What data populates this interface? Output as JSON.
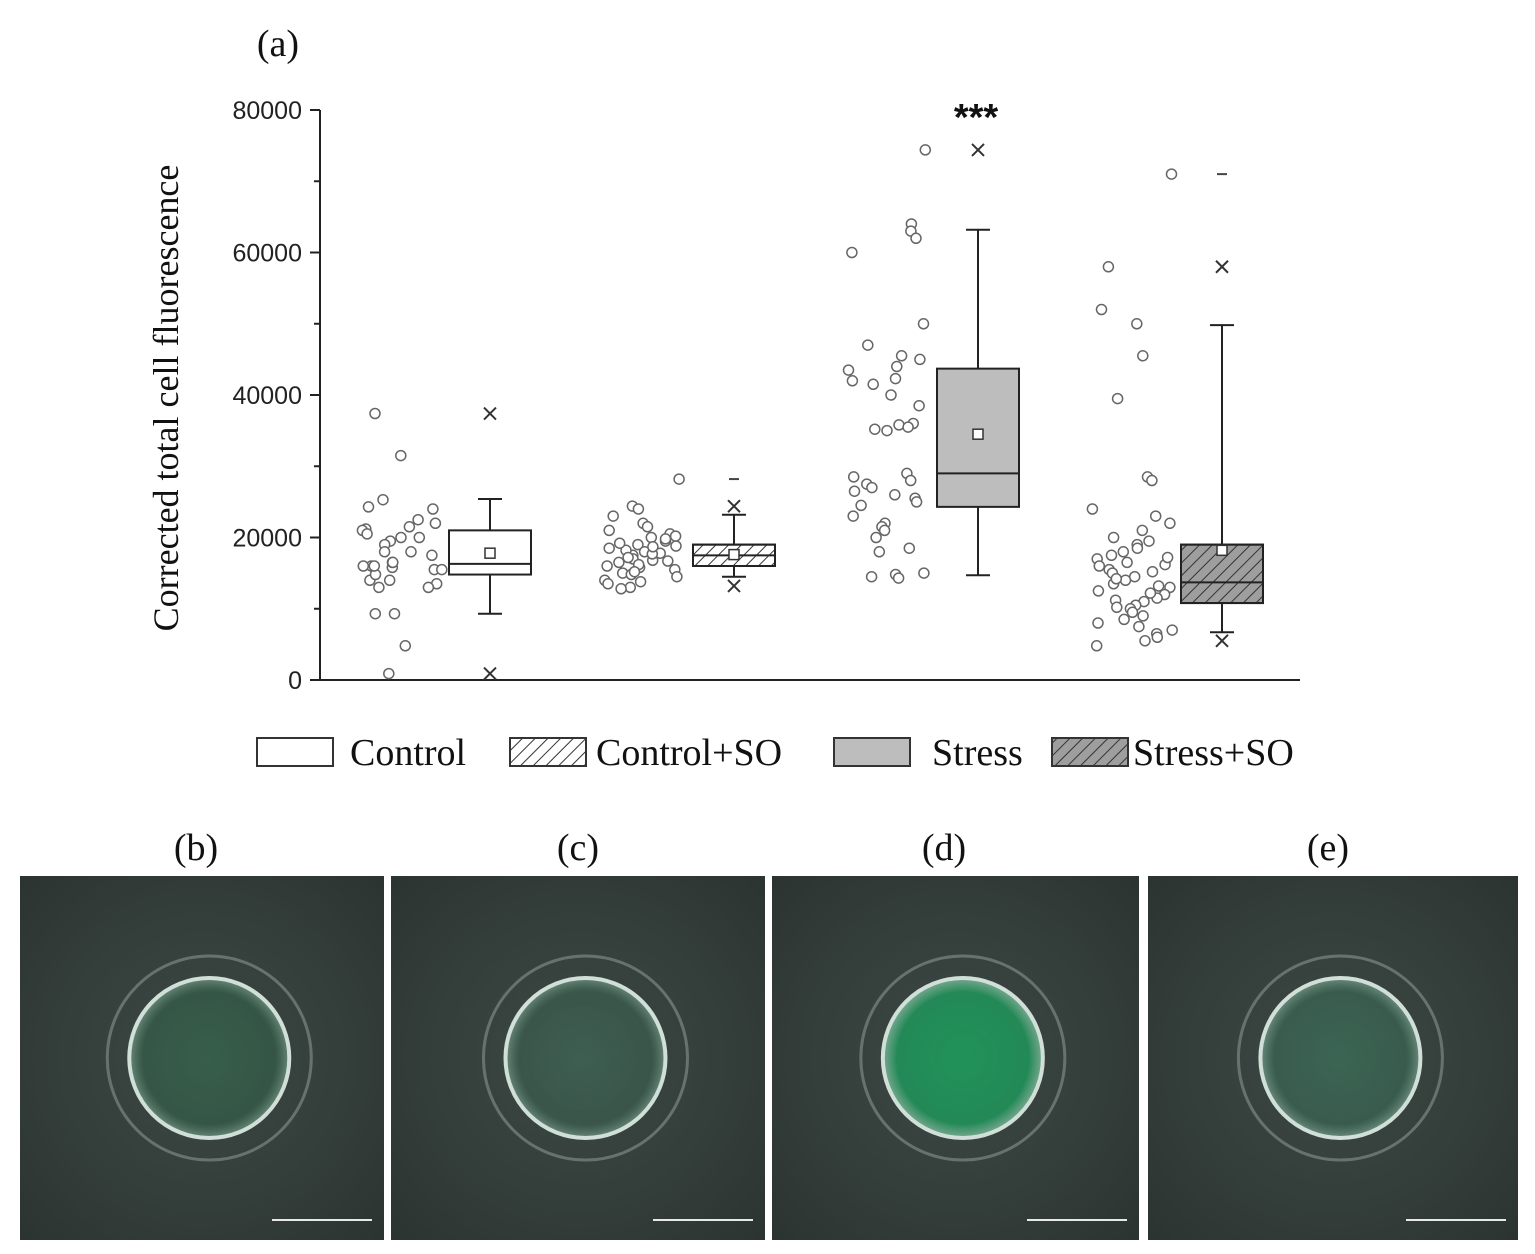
{
  "panel_a_label": "(a)",
  "chart_data": {
    "type": "box",
    "title": "",
    "xlabel": "",
    "ylabel": "Corrected total cell fluorescence",
    "ylim": [
      0,
      80000
    ],
    "yticks": [
      0,
      20000,
      40000,
      60000,
      80000
    ],
    "grid": false,
    "legend_position": "bottom",
    "annotations": [
      {
        "group": "Stress",
        "text": "***"
      }
    ],
    "series": [
      {
        "name": "Control",
        "fill": "#ffffff",
        "hatch": false,
        "box": {
          "q1": 14800,
          "median": 16300,
          "q3": 21000,
          "mean": 17800,
          "whisker_low": 9300,
          "whisker_high": 25400,
          "max_marker": 37400,
          "min_marker": 900
        },
        "points": [
          24000,
          22000,
          21200,
          15800,
          15500,
          16000,
          19500,
          20000,
          18000,
          13000,
          14000,
          13500,
          16500,
          37400,
          31500,
          25300,
          24300,
          20000,
          19000,
          18000,
          21000,
          17500,
          14800,
          13000,
          9300,
          9300,
          4800,
          900,
          22500,
          21500,
          20500,
          16000,
          16500,
          16000,
          15500,
          14000
        ]
      },
      {
        "name": "Control+SO",
        "fill": "#ffffff",
        "hatch": true,
        "box": {
          "q1": 16000,
          "median": 17500,
          "q3": 19000,
          "mean": 17600,
          "whisker_low": 14500,
          "whisker_high": 23200,
          "max_marker": 24400,
          "min_marker": 13200,
          "dash_marker": 28200
        },
        "points": [
          28200,
          24400,
          24000,
          23000,
          22000,
          21500,
          20500,
          20000,
          19500,
          19000,
          18500,
          18000,
          17500,
          17000,
          16500,
          16000,
          15500,
          15000,
          14500,
          14000,
          13500,
          13000,
          12800,
          21000,
          19800,
          18800,
          17800,
          16800,
          15800,
          14800,
          18200,
          17200,
          16200,
          19200,
          20200,
          15200,
          16700,
          17700,
          18700,
          13800
        ]
      },
      {
        "name": "Stress",
        "fill": "#bdbdbd",
        "hatch": false,
        "annotation": "***",
        "box": {
          "q1": 24300,
          "median": 29000,
          "q3": 43700,
          "mean": 34500,
          "whisker_low": 14700,
          "whisker_high": 63200,
          "max_marker": 74400
        },
        "points": [
          74400,
          64000,
          63000,
          62000,
          60000,
          50000,
          47000,
          45500,
          45000,
          44000,
          43500,
          42000,
          41500,
          40000,
          38500,
          36000,
          35800,
          35500,
          35000,
          29000,
          28500,
          28000,
          27500,
          27000,
          26500,
          26000,
          25500,
          25000,
          24500,
          23000,
          22000,
          21500,
          21000,
          20000,
          18500,
          18000,
          15000,
          14800,
          14500,
          14300,
          35200,
          42300
        ]
      },
      {
        "name": "Stress+SO",
        "fill": "#9e9e9e",
        "hatch": true,
        "box": {
          "q1": 10800,
          "median": 13700,
          "q3": 19000,
          "mean": 18200,
          "whisker_low": 6700,
          "whisker_high": 49800,
          "max_marker": 58000,
          "min_marker": 5500,
          "dash_marker": 71000
        },
        "points": [
          71000,
          58000,
          52000,
          50000,
          45500,
          39500,
          28500,
          28000,
          24000,
          23000,
          22000,
          21000,
          20000,
          19500,
          19000,
          18500,
          18000,
          17500,
          17000,
          16500,
          16000,
          15500,
          15000,
          14500,
          14000,
          13500,
          13000,
          12500,
          12000,
          11500,
          11000,
          10500,
          10000,
          9500,
          9000,
          8500,
          8000,
          7500,
          7000,
          6500,
          6000,
          5500,
          4800,
          12200,
          13200,
          14200,
          15200,
          16200,
          17200,
          11200,
          10200
        ]
      }
    ]
  },
  "images": [
    {
      "label": "(b)",
      "tint": "#2f7a52",
      "intensity": 0.35
    },
    {
      "label": "(c)",
      "tint": "#3f8a66",
      "intensity": 0.25
    },
    {
      "label": "(d)",
      "tint": "#1e9a5c",
      "intensity": 0.85
    },
    {
      "label": "(e)",
      "tint": "#3a8a66",
      "intensity": 0.35
    }
  ]
}
